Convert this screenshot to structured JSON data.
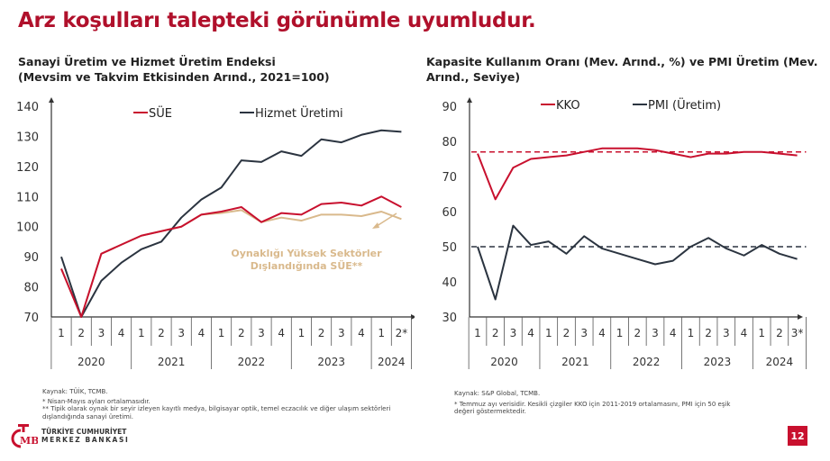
{
  "title": "Arz koşulları talepteki görünümle uyumludur.",
  "chart_data": [
    {
      "type": "line",
      "title": "Sanayi Üretim ve Hizmet Üretim Endeksi (Mevsim ve Takvim Etkisinden Arınd., 2021=100)",
      "title_lines": [
        "Sanayi Üretim ve Hizmet Üretim Endeksi",
        "(Mevsim ve Takvim Etkisinden Arınd., 2021=100)"
      ],
      "x_ticks": [
        "1",
        "2",
        "3",
        "4",
        "1",
        "2",
        "3",
        "4",
        "1",
        "2",
        "3",
        "4",
        "1",
        "2",
        "3",
        "4",
        "1",
        "2*"
      ],
      "years": [
        "2020",
        "2021",
        "2022",
        "2023",
        "2024"
      ],
      "year_spans": [
        4,
        4,
        4,
        4,
        2
      ],
      "ylim": [
        70,
        140
      ],
      "y_ticks": [
        70,
        80,
        90,
        100,
        110,
        120,
        130,
        140
      ],
      "legend_placement": "top",
      "series": [
        {
          "name": "SÜE",
          "color": "#c8102e",
          "values": [
            86,
            70,
            91,
            94,
            97,
            98.5,
            100,
            104,
            105,
            106.5,
            101.5,
            104.5,
            104,
            107.5,
            108,
            107,
            110,
            106.5
          ]
        },
        {
          "name": "Hizmet Üretimi",
          "color": "#2b3440",
          "values": [
            90,
            70,
            82,
            88,
            92.5,
            95,
            103,
            109,
            113,
            122,
            121.5,
            125,
            123.5,
            129,
            128,
            130.5,
            132,
            131.5
          ]
        },
        {
          "name": "Oynaklığı Yüksek Sektörler Dışlandığında SÜE**",
          "color": "#d9b98c",
          "values": [
            86,
            70,
            91,
            94,
            97,
            98.5,
            100,
            104,
            104.5,
            105.5,
            101.5,
            103,
            102,
            104,
            104,
            103.5,
            105,
            102.5
          ]
        }
      ],
      "annotation": [
        "Oynaklığı Yüksek Sektörler",
        "Dışlandığında SÜE**"
      ]
    },
    {
      "type": "line",
      "title": "Kapasite Kullanım Oranı (Mev. Arınd., %) ve PMI Üretim (Mev. Arınd., Seviye)",
      "title_lines": [
        "Kapasite Kullanım Oranı (Mev. Arınd., %) ve PMI Üretim (Mev.",
        "Arınd., Seviye)"
      ],
      "x_ticks": [
        "1",
        "2",
        "3",
        "4",
        "1",
        "2",
        "3",
        "4",
        "1",
        "2",
        "3",
        "4",
        "1",
        "2",
        "3",
        "4",
        "1",
        "2",
        "3*"
      ],
      "years": [
        "2020",
        "2021",
        "2022",
        "2023",
        "2024"
      ],
      "year_spans": [
        4,
        4,
        4,
        4,
        3
      ],
      "ylim": [
        30,
        90
      ],
      "y_ticks": [
        30,
        40,
        50,
        60,
        70,
        80,
        90
      ],
      "legend_placement": "top",
      "series": [
        {
          "name": "KKO",
          "color": "#c8102e",
          "values": [
            76.5,
            63.5,
            72.5,
            75,
            75.5,
            76,
            77,
            78,
            78,
            78,
            77.5,
            76.5,
            75.5,
            76.5,
            76.5,
            77,
            77,
            76.5,
            76
          ]
        },
        {
          "name": "PMI (Üretim)",
          "color": "#2b3440",
          "values": [
            50,
            35,
            56,
            50.5,
            51.5,
            48,
            53,
            49.5,
            48,
            46.5,
            45,
            46,
            50,
            52.5,
            49.5,
            47.5,
            50.5,
            48,
            46.5
          ]
        }
      ],
      "reference_lines": [
        {
          "value": 77,
          "color": "#c8102e"
        },
        {
          "value": 50,
          "color": "#2b3440"
        }
      ]
    }
  ],
  "notes_left": [
    "Kaynak: TÜİK, TCMB.",
    "* Nisan-Mayıs ayları ortalamasıdır.",
    "** Tipik olarak oynak bir seyir izleyen kayıtlı medya, bilgisayar optik, temel eczacılık ve diğer ulaşım sektörleri dışlandığında sanayi üretimi."
  ],
  "notes_right": [
    "Kaynak: S&P Global, TCMB.",
    "* Temmuz ayı verisidir. Kesikli çizgiler KKO için 2011-2019 ortalamasını, PMI için 50 eşik değeri göstermektedir."
  ],
  "logo": {
    "line1": "TÜRKİYE CUMHURİYET",
    "line2": "MERKEZ BANKASI",
    "mark": "TCMB"
  },
  "page_number": "12"
}
